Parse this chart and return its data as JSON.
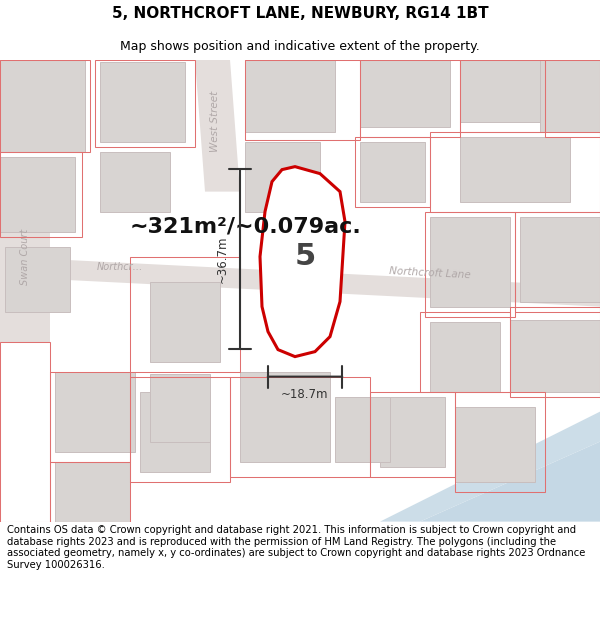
{
  "title_line1": "5, NORTHCROFT LANE, NEWBURY, RG14 1BT",
  "title_line2": "Map shows position and indicative extent of the property.",
  "footer_text": "Contains OS data © Crown copyright and database right 2021. This information is subject to Crown copyright and database rights 2023 and is reproduced with the permission of HM Land Registry. The polygons (including the associated geometry, namely x, y co-ordinates) are subject to Crown copyright and database rights 2023 Ordnance Survey 100026316.",
  "area_label": "~321m²/~0.079ac.",
  "label_number": "5",
  "dim_vertical": "~36.7m",
  "dim_horizontal": "~18.7m",
  "map_bg": "#f0ecea",
  "red_color": "#cc0000",
  "dim_color": "#333333",
  "title_fontsize": 11,
  "subtitle_fontsize": 9,
  "footer_fontsize": 7.2,
  "area_fontsize": 16,
  "street_label_color": "#b0a8a8"
}
